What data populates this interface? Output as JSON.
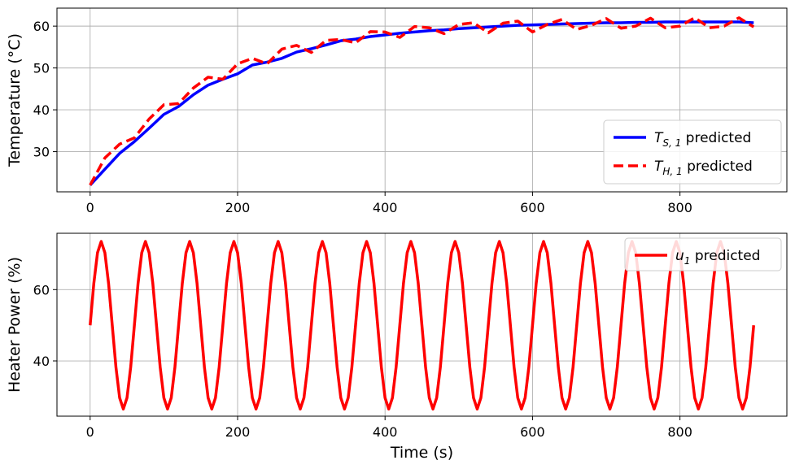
{
  "chart_data": [
    {
      "type": "line",
      "title": "",
      "xlabel": "",
      "ylabel": "Temperature (°C)",
      "xlim": [
        -45,
        945
      ],
      "ylim": [
        20.4,
        64.3
      ],
      "xticks": [
        0,
        200,
        400,
        600,
        800
      ],
      "yticks": [
        30,
        40,
        50,
        60
      ],
      "grid": true,
      "legend_position": "lower-right",
      "series": [
        {
          "name": "T_S,1 predicted",
          "label_main": "T",
          "label_sub": "S, 1",
          "label_rest": " predicted",
          "color": "#0000ff",
          "dash": "solid",
          "x": [
            0,
            20,
            40,
            60,
            80,
            100,
            120,
            140,
            160,
            180,
            200,
            220,
            240,
            260,
            280,
            300,
            320,
            340,
            360,
            380,
            400,
            420,
            440,
            460,
            480,
            500,
            520,
            540,
            560,
            580,
            600,
            620,
            640,
            660,
            680,
            700,
            720,
            740,
            760,
            780,
            800,
            820,
            840,
            860,
            880,
            900
          ],
          "values": [
            22.0,
            25.8,
            29.6,
            32.4,
            35.6,
            38.9,
            40.8,
            43.6,
            45.9,
            47.3,
            48.6,
            50.7,
            51.4,
            52.3,
            53.8,
            54.6,
            55.5,
            56.5,
            56.9,
            57.5,
            57.9,
            58.3,
            58.6,
            58.9,
            59.1,
            59.4,
            59.6,
            59.8,
            60.0,
            60.2,
            60.3,
            60.4,
            60.5,
            60.6,
            60.7,
            60.8,
            60.8,
            60.9,
            60.9,
            61.0,
            61.0,
            61.0,
            61.0,
            61.0,
            61.0,
            60.8
          ]
        },
        {
          "name": "T_H,1 predicted",
          "label_main": "T",
          "label_sub": "H, 1",
          "label_rest": " predicted",
          "color": "#ff0000",
          "dash": "dashed",
          "x": [
            0,
            20,
            40,
            60,
            80,
            100,
            120,
            140,
            160,
            180,
            200,
            220,
            240,
            260,
            280,
            300,
            320,
            340,
            360,
            380,
            400,
            420,
            440,
            460,
            480,
            500,
            520,
            540,
            560,
            580,
            600,
            620,
            640,
            660,
            680,
            700,
            720,
            740,
            760,
            780,
            800,
            820,
            840,
            860,
            880,
            900
          ],
          "values": [
            22.0,
            28.5,
            31.8,
            33.3,
            37.8,
            41.2,
            41.5,
            45.2,
            47.8,
            47.3,
            51.0,
            52.3,
            51.0,
            54.5,
            55.4,
            53.7,
            56.6,
            56.8,
            56.0,
            58.7,
            58.6,
            57.3,
            59.9,
            59.6,
            58.2,
            60.4,
            60.8,
            58.4,
            60.7,
            61.2,
            58.6,
            60.4,
            61.6,
            59.2,
            60.2,
            61.8,
            59.5,
            60.0,
            61.9,
            59.6,
            60.0,
            62.0,
            59.6,
            60.0,
            62.0,
            59.8
          ]
        }
      ]
    },
    {
      "type": "line",
      "title": "",
      "xlabel": "Time (s)",
      "ylabel": "Heater Power (%)",
      "xlim": [
        -45,
        945
      ],
      "ylim": [
        24.5,
        75.8
      ],
      "xticks": [
        0,
        200,
        400,
        600,
        800
      ],
      "yticks": [
        40,
        60
      ],
      "grid": true,
      "legend_position": "top-right",
      "series": [
        {
          "name": "u_1 predicted",
          "label_main": "u",
          "label_sub": "1",
          "label_rest": " predicted",
          "color": "#ff0000",
          "dash": "solid",
          "amplitude": 23.5,
          "offset": 50.0,
          "period_s": 60,
          "t_start": 0,
          "t_end": 900,
          "step_s": 5,
          "clip": [
            26.5,
            73.5
          ]
        }
      ]
    }
  ]
}
